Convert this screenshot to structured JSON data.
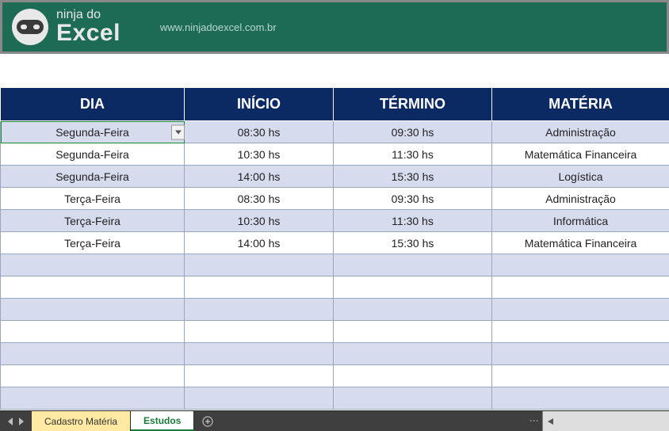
{
  "banner": {
    "brand_small": "ninja do",
    "brand_big": "Excel",
    "url": "www.ninjadoexcel.com.br",
    "bg_color": "#1d6b55"
  },
  "table": {
    "header_bg": "#0b2a64",
    "header_text": "#ffffff",
    "row_odd_bg": "#d6dcee",
    "row_even_bg": "#ffffff",
    "border_color": "#9aa5bf",
    "columns": [
      "DIA",
      "INÍCIO",
      "TÉRMINO",
      "MATÉRIA"
    ],
    "rows": [
      {
        "dia": "Segunda-Feira",
        "inicio": "08:30 hs",
        "termino": "09:30 hs",
        "materia": "Administração",
        "selected": true
      },
      {
        "dia": "Segunda-Feira",
        "inicio": "10:30 hs",
        "termino": "11:30 hs",
        "materia": "Matemática Financeira"
      },
      {
        "dia": "Segunda-Feira",
        "inicio": "14:00 hs",
        "termino": "15:30 hs",
        "materia": "Logística"
      },
      {
        "dia": "Terça-Feira",
        "inicio": "08:30 hs",
        "termino": "09:30 hs",
        "materia": "Administração"
      },
      {
        "dia": "Terça-Feira",
        "inicio": "10:30 hs",
        "termino": "11:30 hs",
        "materia": "Informática"
      },
      {
        "dia": "Terça-Feira",
        "inicio": "14:00 hs",
        "termino": "15:30 hs",
        "materia": "Matemática Financeira"
      }
    ],
    "empty_rows": 7
  },
  "footer": {
    "tabs": [
      {
        "label": "Cadastro Matéria",
        "active": false
      },
      {
        "label": "Estudos",
        "active": true
      }
    ]
  }
}
